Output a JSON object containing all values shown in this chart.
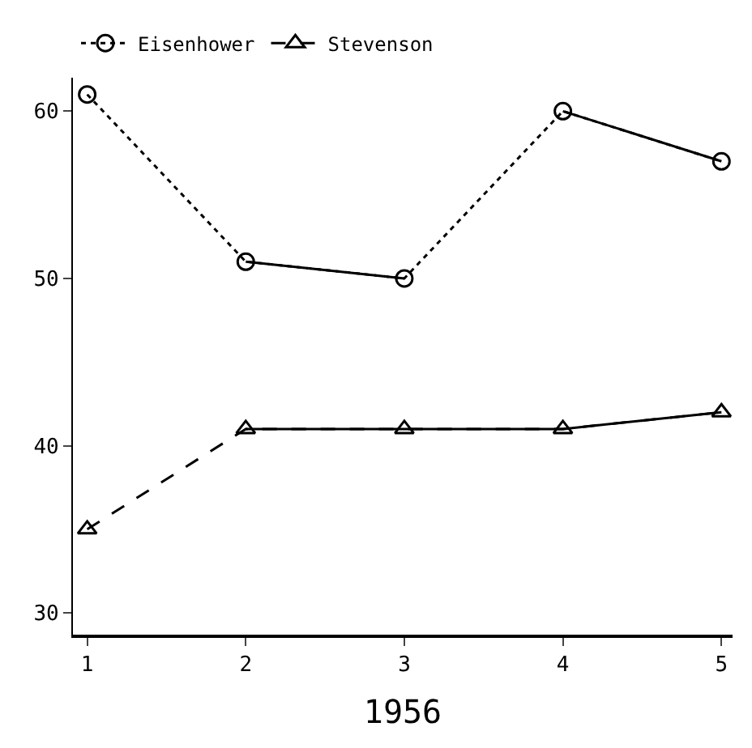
{
  "chart_data": {
    "type": "line",
    "xlabel": "1956",
    "x": [
      1,
      2,
      3,
      4,
      5
    ],
    "series": [
      {
        "name": "Eisenhower",
        "color": "#000000",
        "values": [
          61,
          51,
          50,
          60,
          57
        ],
        "marker": "circle",
        "line_style": "dotted"
      },
      {
        "name": "Stevenson",
        "color": "#000000",
        "values": [
          35,
          41,
          41,
          41,
          42
        ],
        "marker": "triangle",
        "line_style": "dashed"
      },
      {
        "color": "#000000",
        "values": [
          null,
          51,
          50,
          null,
          null
        ],
        "marker": "none",
        "line_style": "solid"
      },
      {
        "color": "#000000",
        "values": [
          null,
          null,
          null,
          60,
          57
        ],
        "marker": "none",
        "line_style": "solid"
      },
      {
        "color": "#000000",
        "values": [
          null,
          41,
          41,
          41,
          42
        ],
        "marker": "none",
        "line_style": "solid"
      }
    ],
    "xlim": [
      0.91,
      5.07
    ],
    "xticks": [
      1,
      2,
      3,
      4,
      5
    ],
    "ylim": [
      28.7,
      62
    ],
    "yticks": [
      30,
      40,
      50,
      60
    ],
    "legend": "top left"
  }
}
